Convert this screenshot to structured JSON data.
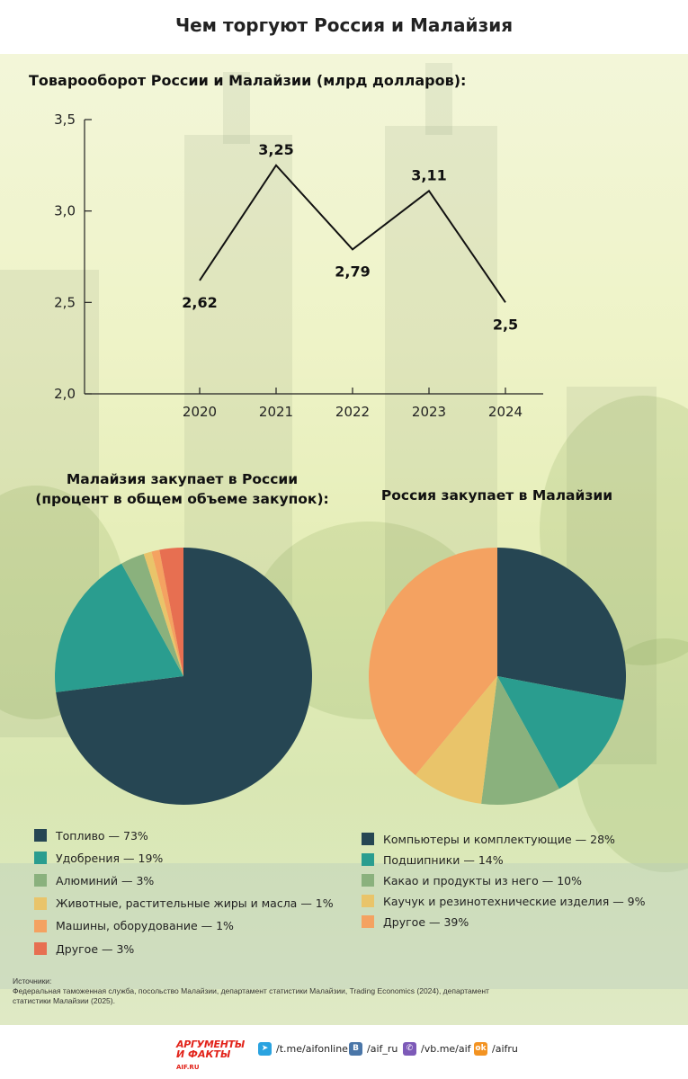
{
  "header": {
    "title": "Чем торгуют Россия и Малайзия"
  },
  "chart_data": [
    {
      "type": "line",
      "title": "Товарооборот России и Малайзии (млрд долларов):",
      "x": [
        "2020",
        "2021",
        "2022",
        "2023",
        "2024"
      ],
      "values": [
        2.62,
        3.25,
        2.79,
        3.11,
        2.5
      ],
      "data_labels": [
        "2,62",
        "3,25",
        "2,79",
        "3,11",
        "2,5"
      ],
      "y_ticks": [
        2.0,
        2.5,
        3.0,
        3.5
      ],
      "y_tick_labels": [
        "2,0",
        "2,5",
        "3,0",
        "3,5"
      ],
      "ylim": [
        2.0,
        3.5
      ],
      "grid": false,
      "color": "#111111"
    },
    {
      "type": "pie",
      "title": [
        "Малайзия закупает в России",
        "(процент в общем объеме закупок):"
      ],
      "legend_position": "bottom",
      "slices": [
        {
          "label": "Топливо — 73%",
          "value": 73,
          "color": "#264653"
        },
        {
          "label": "Удобрения — 19%",
          "value": 19,
          "color": "#2a9d8f"
        },
        {
          "label": "Алюминий — 3%",
          "value": 3,
          "color": "#8ab17d"
        },
        {
          "label": "Животные, растительные жиры и масла — 1%",
          "value": 1,
          "color": "#e9c46a"
        },
        {
          "label": "Машины, оборудование — 1%",
          "value": 1,
          "color": "#f4a261"
        },
        {
          "label": "Другое — 3%",
          "value": 3,
          "color": "#e76f51"
        }
      ]
    },
    {
      "type": "pie",
      "title": [
        "Россия закупает в Малайзии"
      ],
      "legend_position": "bottom",
      "slices": [
        {
          "label": "Компьютеры и комплектующие — 28%",
          "value": 28,
          "color": "#264653"
        },
        {
          "label": "Подшипники — 14%",
          "value": 14,
          "color": "#2a9d8f"
        },
        {
          "label": "Какао и продукты из него — 10%",
          "value": 10,
          "color": "#8ab17d"
        },
        {
          "label": "Каучук и резинотехнические изделия — 9%",
          "value": 9,
          "color": "#e9c46a"
        },
        {
          "label": "Другое — 39%",
          "value": 39,
          "color": "#f4a261"
        }
      ]
    }
  ],
  "sources": {
    "heading": "Источники:",
    "text": "Федеральная таможенная служба, посольство Малайзии, департамент статистики Малайзии, Trading Economics (2024), департамент статистики Малайзии (2025)."
  },
  "footer": {
    "brand_top": "АРГУМЕНТЫ",
    "brand_bottom": "И ФАКТЫ",
    "brand_site": "AIF.RU",
    "links": [
      {
        "icon": "telegram-icon",
        "glyph": "➤",
        "text": "/t.me/aifonline",
        "color": "#2aa3e0"
      },
      {
        "icon": "vk-icon",
        "glyph": "В",
        "text": "/aif_ru",
        "color": "#4a76a8"
      },
      {
        "icon": "viber-icon",
        "glyph": "✆",
        "text": "/vb.me/aif",
        "color": "#7d5ab8"
      },
      {
        "icon": "ok-icon",
        "glyph": "ok",
        "text": "/aifru",
        "color": "#f39322"
      }
    ]
  }
}
